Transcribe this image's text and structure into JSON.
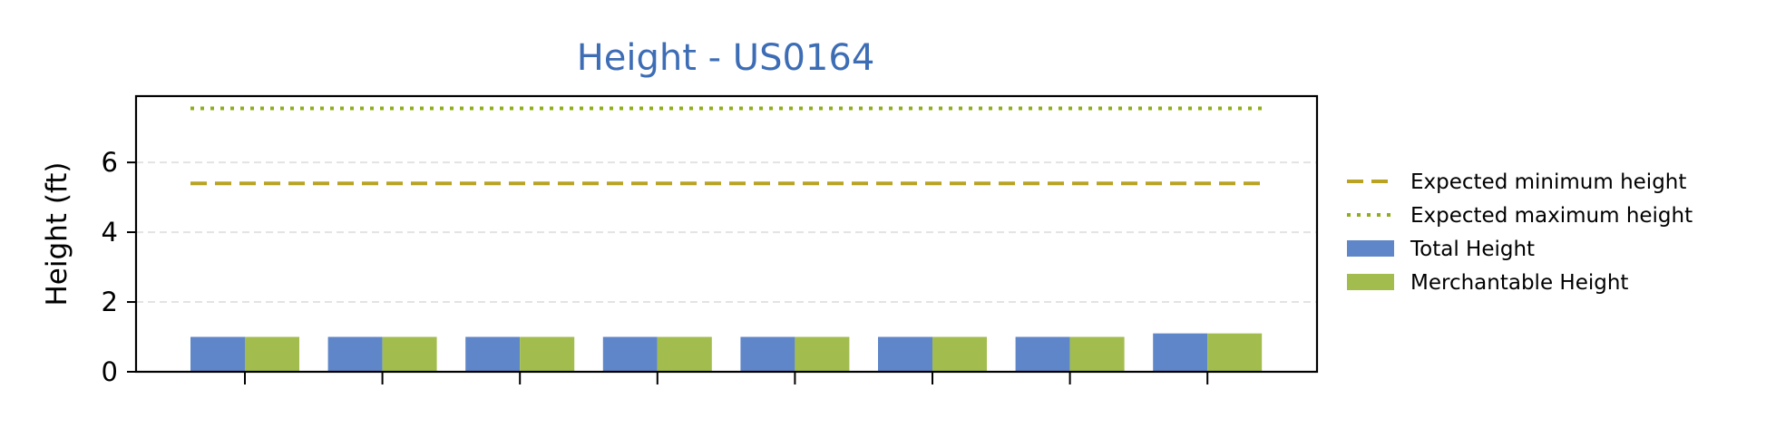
{
  "chart_data": {
    "type": "bar",
    "title": "Height - US0164",
    "xlabel": "",
    "ylabel": "Height (ft)",
    "ylim": [
      0,
      7.9
    ],
    "yticks": [
      0,
      2,
      4,
      6
    ],
    "categories": [
      "",
      "",
      "",
      "",
      "",
      "",
      "",
      ""
    ],
    "series": [
      {
        "name": "Total Height",
        "color": "#5f86c8",
        "values": [
          1.0,
          1.0,
          1.0,
          1.0,
          1.0,
          1.0,
          1.0,
          1.1
        ]
      },
      {
        "name": "Merchantable Height",
        "color": "#a2bd4e",
        "values": [
          1.0,
          1.0,
          1.0,
          1.0,
          1.0,
          1.0,
          1.0,
          1.1
        ]
      }
    ],
    "reference_lines": [
      {
        "name": "Expected minimum height",
        "value": 5.4,
        "style": "dashed",
        "color": "#b8a323"
      },
      {
        "name": "Expected maximum height",
        "value": 7.55,
        "style": "dotted",
        "color": "#8fae1b"
      }
    ],
    "grid": "y-dashed",
    "legend_position": "right"
  }
}
